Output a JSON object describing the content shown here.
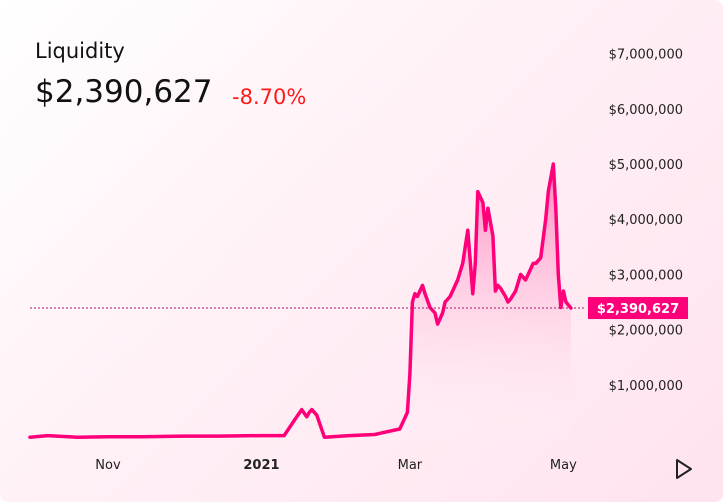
{
  "header": {
    "title": "Liquidity",
    "value": "$2,390,627",
    "change": "-8.70%",
    "change_color": "#ff1a1a"
  },
  "colors": {
    "line": "#ff007a",
    "fill_top": "#ff4fa0",
    "background_accent": "#ffe3ef"
  },
  "controls": {
    "play_icon": "play-icon"
  },
  "chart_data": {
    "type": "area",
    "title": "",
    "xlabel": "",
    "ylabel": "",
    "ylim": [
      0,
      7000000
    ],
    "yticks": [
      {
        "value": 1000000,
        "label": "$1,000,000"
      },
      {
        "value": 2000000,
        "label": "$2,000,000"
      },
      {
        "value": 3000000,
        "label": "$3,000,000"
      },
      {
        "value": 4000000,
        "label": "$4,000,000"
      },
      {
        "value": 5000000,
        "label": "$5,000,000"
      },
      {
        "value": 6000000,
        "label": "$6,000,000"
      },
      {
        "value": 7000000,
        "label": "$7,000,000"
      }
    ],
    "xlim": [
      "2020-10-01",
      "2021-05-10"
    ],
    "xticks": [
      {
        "date": "2020-11-01",
        "label": "Nov",
        "bold": false
      },
      {
        "date": "2021-01-01",
        "label": "2021",
        "bold": true
      },
      {
        "date": "2021-03-01",
        "label": "Mar",
        "bold": false
      },
      {
        "date": "2021-05-01",
        "label": "May",
        "bold": false
      }
    ],
    "current": {
      "value": 2390627,
      "label": "$2,390,627"
    },
    "grid": false,
    "series": [
      {
        "x": [
          "2020-10-01",
          "2020-10-08",
          "2020-10-20",
          "2020-11-01",
          "2020-11-15",
          "2020-12-01",
          "2020-12-15",
          "2021-01-01",
          "2021-01-10",
          "2021-01-15",
          "2021-01-17",
          "2021-01-19",
          "2021-01-20",
          "2021-01-21",
          "2021-01-23",
          "2021-01-26",
          "2021-01-29",
          "2021-02-05",
          "2021-02-15",
          "2021-02-20",
          "2021-02-25",
          "2021-02-28",
          "2021-03-01",
          "2021-03-02",
          "2021-03-03",
          "2021-03-04",
          "2021-03-06",
          "2021-03-07",
          "2021-03-09",
          "2021-03-11",
          "2021-03-12",
          "2021-03-14",
          "2021-03-15",
          "2021-03-17",
          "2021-03-20",
          "2021-03-22",
          "2021-03-24",
          "2021-03-26",
          "2021-03-27",
          "2021-03-28",
          "2021-03-29",
          "2021-03-30",
          "2021-03-31",
          "2021-04-01",
          "2021-04-03",
          "2021-04-04",
          "2021-04-05",
          "2021-04-06",
          "2021-04-08",
          "2021-04-09",
          "2021-04-10",
          "2021-04-12",
          "2021-04-14",
          "2021-04-16",
          "2021-04-18",
          "2021-04-19",
          "2021-04-20",
          "2021-04-22",
          "2021-04-24",
          "2021-04-25",
          "2021-04-27",
          "2021-04-28",
          "2021-04-29",
          "2021-04-30",
          "2021-05-01",
          "2021-05-02",
          "2021-05-04"
        ],
        "y": [
          50000,
          80000,
          50000,
          60000,
          60000,
          70000,
          70000,
          80000,
          80000,
          420000,
          550000,
          420000,
          500000,
          550000,
          450000,
          50000,
          60000,
          80000,
          100000,
          150000,
          200000,
          500000,
          1200000,
          2500000,
          2650000,
          2600000,
          2800000,
          2650000,
          2400000,
          2300000,
          2100000,
          2300000,
          2500000,
          2600000,
          2900000,
          3200000,
          3800000,
          2650000,
          3200000,
          4500000,
          4400000,
          4300000,
          3800000,
          4200000,
          3700000,
          2700000,
          2800000,
          2750000,
          2600000,
          2500000,
          2550000,
          2700000,
          3000000,
          2900000,
          3100000,
          3200000,
          3200000,
          3300000,
          4000000,
          4500000,
          5000000,
          4200000,
          3000000,
          2400000,
          2700000,
          2500000,
          2390627
        ]
      }
    ]
  }
}
